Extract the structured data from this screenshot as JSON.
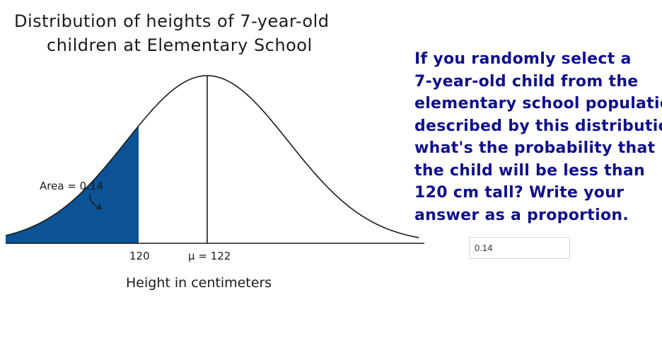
{
  "figure": {
    "title_lines": [
      "Distribution of heights of 7-year-old",
      "children at Elementary School"
    ],
    "area_label": "Area = 0.14",
    "cutoff_label": "120",
    "mean_label": "μ = 122",
    "axis_title": "Height in centimeters",
    "shaded_color": "#0b5394"
  },
  "question": {
    "lines": [
      "If you randomly select a",
      "7-year-old child from the",
      "elementary school population",
      "described by this distribution,",
      "what's the probability that",
      "the child will be less than",
      "120 cm tall? Write your",
      "answer as a proportion."
    ],
    "color": "#10108c"
  },
  "answer": {
    "value": "0.14"
  }
}
